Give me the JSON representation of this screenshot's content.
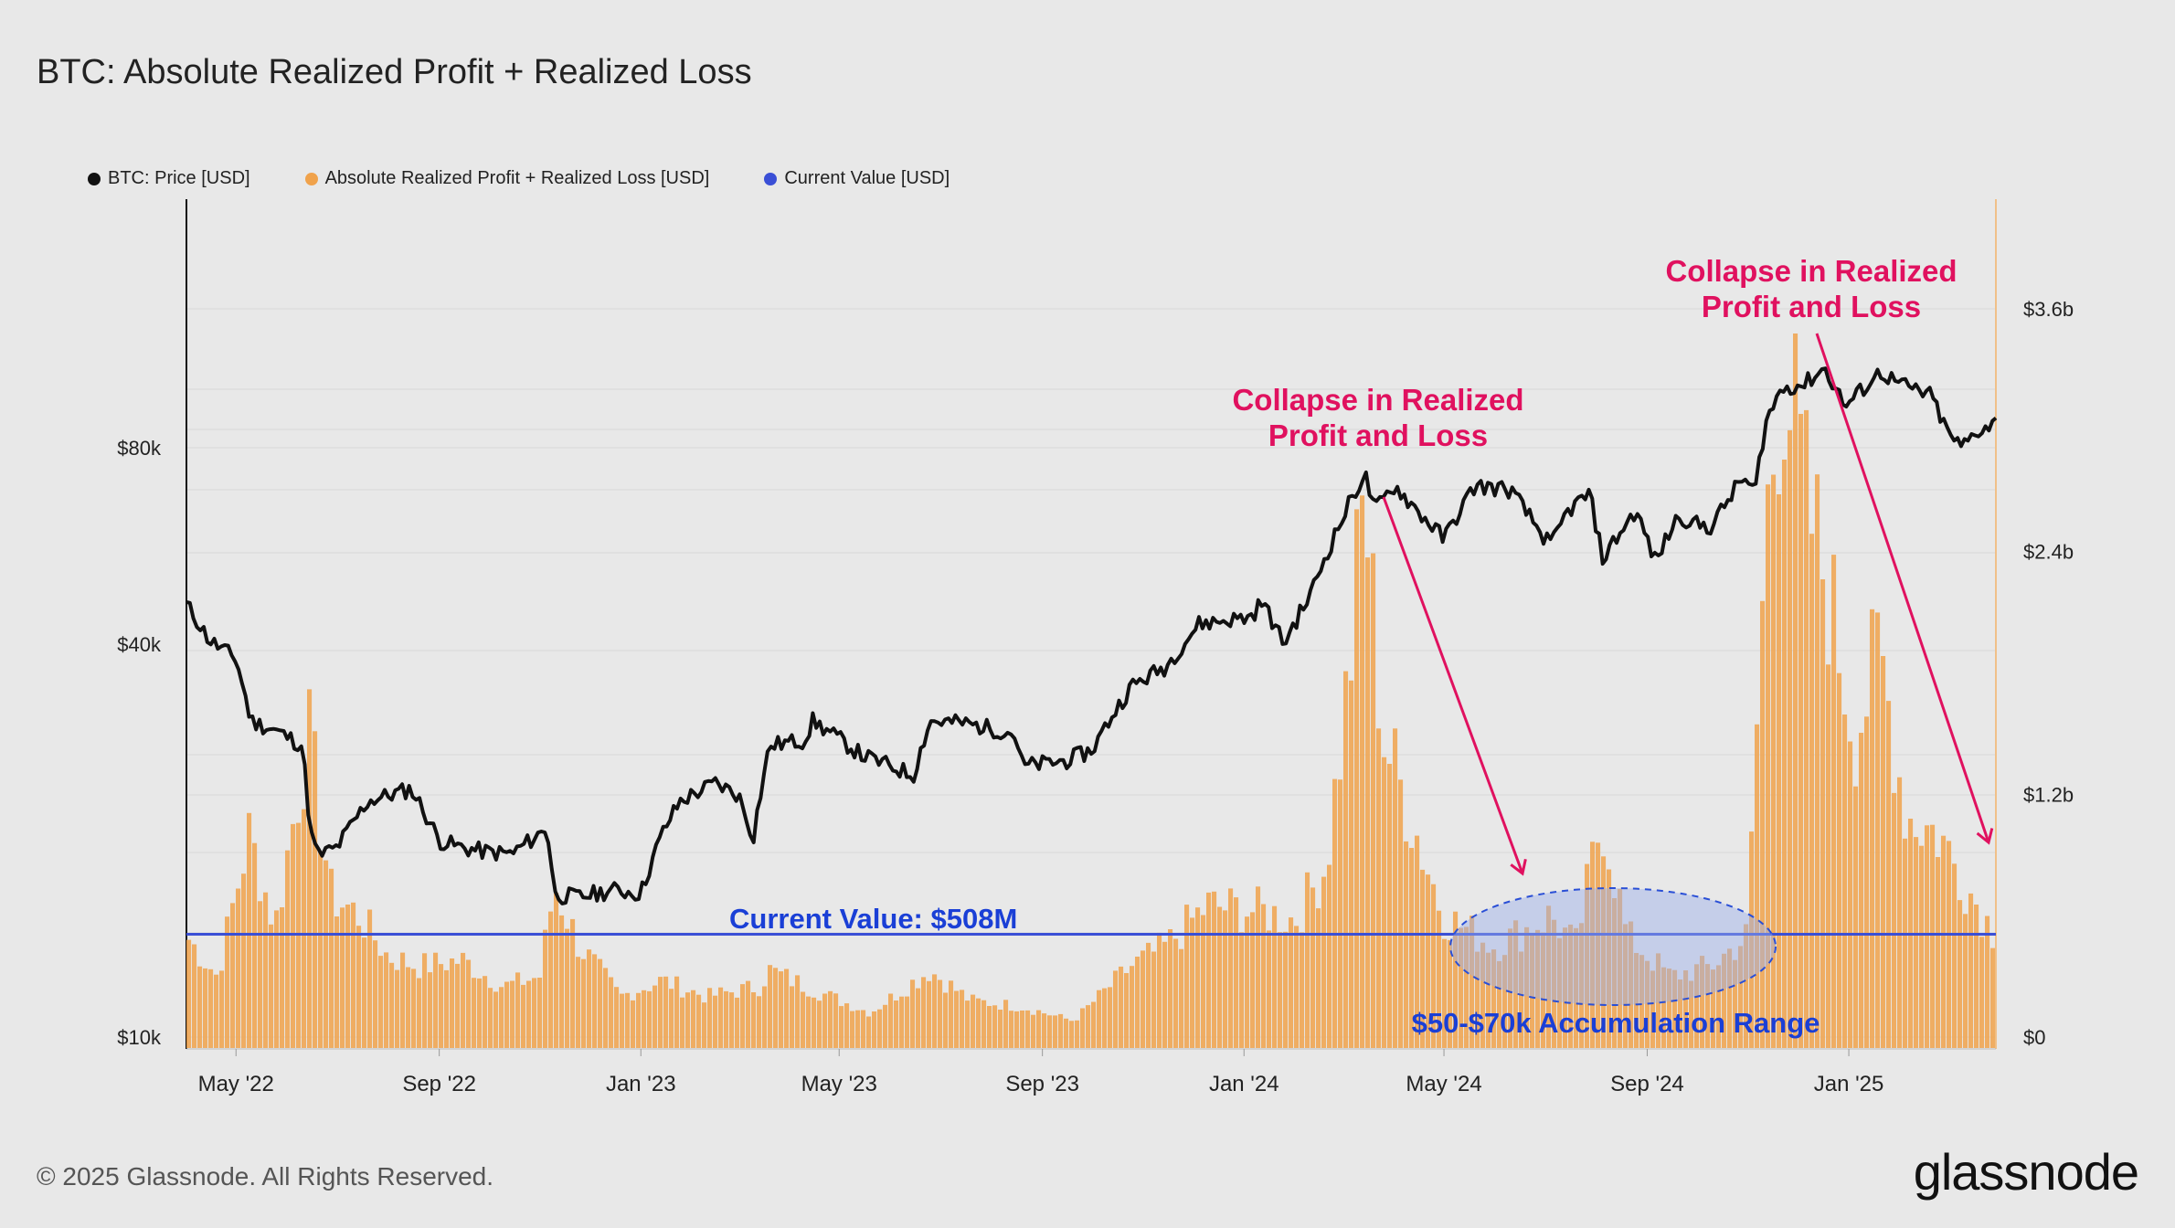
{
  "title": "BTC: Absolute Realized Profit + Realized Loss",
  "legend": [
    {
      "label": "BTC: Price [USD]",
      "color": "#111111"
    },
    {
      "label": "Absolute Realized Profit + Realized Loss [USD]",
      "color": "#f0a24b"
    },
    {
      "label": "Current Value [USD]",
      "color": "#3a4fd6"
    }
  ],
  "footer": {
    "copyright": "© 2025 Glassnode. All Rights Reserved.",
    "logo": "glassnode"
  },
  "chart_data": {
    "type": "line",
    "x_ticks": [
      "May '22",
      "Sep '22",
      "Jan '23",
      "May '23",
      "Sep '23",
      "Jan '24",
      "May '24",
      "Sep '24",
      "Jan '25"
    ],
    "x_range": [
      "2022-04-01",
      "2025-03-31"
    ],
    "left_axis": {
      "scale": "log",
      "ticks": [
        "$10k",
        "$40k",
        "$80k"
      ],
      "tick_values": [
        10000,
        40000,
        80000
      ]
    },
    "right_axis": {
      "scale": "linear",
      "ticks": [
        "$0",
        "$1.2b",
        "$2.4b",
        "$3.6b"
      ],
      "tick_values": [
        0,
        1.2,
        2.4,
        3.6
      ],
      "unit": "billion USD"
    },
    "grid": "horizontal",
    "legend_position": "top-left",
    "series": [
      {
        "name": "BTC: Price [USD]",
        "color": "#111111",
        "axis": "left",
        "points": [
          [
            "2022-04-01",
            46000
          ],
          [
            "2022-04-15",
            40500
          ],
          [
            "2022-05-01",
            38000
          ],
          [
            "2022-05-10",
            30500
          ],
          [
            "2022-05-25",
            29500
          ],
          [
            "2022-06-10",
            28000
          ],
          [
            "2022-06-15",
            20500
          ],
          [
            "2022-06-20",
            19000
          ],
          [
            "2022-07-01",
            19500
          ],
          [
            "2022-07-20",
            23000
          ],
          [
            "2022-08-15",
            24000
          ],
          [
            "2022-09-01",
            20000
          ],
          [
            "2022-09-15",
            19500
          ],
          [
            "2022-10-01",
            19200
          ],
          [
            "2022-10-15",
            19100
          ],
          [
            "2022-11-01",
            20500
          ],
          [
            "2022-11-05",
            21000
          ],
          [
            "2022-11-10",
            16500
          ],
          [
            "2022-11-25",
            16400
          ],
          [
            "2022-12-15",
            16800
          ],
          [
            "2023-01-01",
            16600
          ],
          [
            "2023-01-15",
            20800
          ],
          [
            "2023-01-25",
            23000
          ],
          [
            "2023-02-15",
            24500
          ],
          [
            "2023-03-01",
            23500
          ],
          [
            "2023-03-10",
            20200
          ],
          [
            "2023-03-20",
            28000
          ],
          [
            "2023-04-10",
            28500
          ],
          [
            "2023-04-15",
            30500
          ],
          [
            "2023-05-15",
            27000
          ],
          [
            "2023-06-15",
            25200
          ],
          [
            "2023-06-25",
            30500
          ],
          [
            "2023-07-15",
            30300
          ],
          [
            "2023-08-15",
            29200
          ],
          [
            "2023-08-20",
            26000
          ],
          [
            "2023-09-15",
            26500
          ],
          [
            "2023-10-01",
            27500
          ],
          [
            "2023-10-25",
            34500
          ],
          [
            "2023-11-15",
            37000
          ],
          [
            "2023-12-05",
            43000
          ],
          [
            "2023-12-20",
            43500
          ],
          [
            "2024-01-05",
            44000
          ],
          [
            "2024-01-12",
            46500
          ],
          [
            "2024-01-25",
            40000
          ],
          [
            "2024-02-10",
            47500
          ],
          [
            "2024-02-28",
            61000
          ],
          [
            "2024-03-05",
            66000
          ],
          [
            "2024-03-14",
            73000
          ],
          [
            "2024-03-20",
            64000
          ],
          [
            "2024-04-01",
            70000
          ],
          [
            "2024-04-15",
            64000
          ],
          [
            "2024-05-01",
            58000
          ],
          [
            "2024-05-20",
            70000
          ],
          [
            "2024-06-10",
            69000
          ],
          [
            "2024-06-25",
            61000
          ],
          [
            "2024-07-05",
            56500
          ],
          [
            "2024-07-15",
            64000
          ],
          [
            "2024-07-28",
            68000
          ],
          [
            "2024-08-05",
            54000
          ],
          [
            "2024-08-25",
            64000
          ],
          [
            "2024-09-06",
            53500
          ],
          [
            "2024-09-20",
            63000
          ],
          [
            "2024-10-01",
            61000
          ],
          [
            "2024-10-10",
            60500
          ],
          [
            "2024-10-29",
            72000
          ],
          [
            "2024-11-05",
            68000
          ],
          [
            "2024-11-12",
            88000
          ],
          [
            "2024-11-22",
            99000
          ],
          [
            "2024-12-05",
            100000
          ],
          [
            "2024-12-17",
            106000
          ],
          [
            "2024-12-30",
            92500
          ],
          [
            "2025-01-07",
            97000
          ],
          [
            "2025-01-20",
            104500
          ],
          [
            "2025-02-01",
            100000
          ],
          [
            "2025-02-20",
            96000
          ],
          [
            "2025-03-01",
            85000
          ],
          [
            "2025-03-10",
            80000
          ],
          [
            "2025-03-20",
            85000
          ],
          [
            "2025-03-31",
            87500
          ]
        ]
      },
      {
        "name": "Absolute Realized Profit + Realized Loss [USD]",
        "color": "#f0a24b",
        "axis": "right",
        "type": "bar",
        "points": [
          [
            "2022-04-01",
            0.5
          ],
          [
            "2022-04-20",
            0.3
          ],
          [
            "2022-05-09",
            1.0
          ],
          [
            "2022-05-25",
            0.55
          ],
          [
            "2022-06-14",
            1.5
          ],
          [
            "2022-06-28",
            0.7
          ],
          [
            "2022-07-15",
            0.6
          ],
          [
            "2022-08-01",
            0.4
          ],
          [
            "2022-08-20",
            0.35
          ],
          [
            "2022-09-15",
            0.38
          ],
          [
            "2022-10-10",
            0.25
          ],
          [
            "2022-11-01",
            0.3
          ],
          [
            "2022-11-10",
            0.75
          ],
          [
            "2022-11-25",
            0.45
          ],
          [
            "2022-12-20",
            0.2
          ],
          [
            "2023-01-14",
            0.28
          ],
          [
            "2023-02-10",
            0.2
          ],
          [
            "2023-03-14",
            0.25
          ],
          [
            "2023-03-20",
            0.33
          ],
          [
            "2023-04-20",
            0.22
          ],
          [
            "2023-05-20",
            0.12
          ],
          [
            "2023-06-25",
            0.33
          ],
          [
            "2023-07-20",
            0.18
          ],
          [
            "2023-08-20",
            0.15
          ],
          [
            "2023-09-20",
            0.08
          ],
          [
            "2023-10-25",
            0.35
          ],
          [
            "2023-11-15",
            0.45
          ],
          [
            "2023-12-10",
            0.65
          ],
          [
            "2024-01-12",
            0.62
          ],
          [
            "2024-02-01",
            0.58
          ],
          [
            "2024-02-20",
            0.85
          ],
          [
            "2024-03-05",
            1.8
          ],
          [
            "2024-03-14",
            2.7
          ],
          [
            "2024-03-25",
            1.5
          ],
          [
            "2024-04-15",
            1.0
          ],
          [
            "2024-05-01",
            0.6
          ],
          [
            "2024-06-01",
            0.45
          ],
          [
            "2024-07-05",
            0.6
          ],
          [
            "2024-07-20",
            0.45
          ],
          [
            "2024-08-05",
            1.1
          ],
          [
            "2024-08-20",
            0.5
          ],
          [
            "2024-09-15",
            0.3
          ],
          [
            "2024-10-10",
            0.35
          ],
          [
            "2024-11-01",
            0.5
          ],
          [
            "2024-11-12",
            2.5
          ],
          [
            "2024-11-22",
            3.4
          ],
          [
            "2024-12-05",
            2.7
          ],
          [
            "2024-12-20",
            2.2
          ],
          [
            "2025-01-05",
            1.5
          ],
          [
            "2025-01-20",
            1.9
          ],
          [
            "2025-02-05",
            1.1
          ],
          [
            "2025-02-25",
            1.0
          ],
          [
            "2025-03-10",
            0.8
          ],
          [
            "2025-03-31",
            0.5
          ]
        ]
      },
      {
        "name": "Current Value [USD]",
        "color": "#3a4fd6",
        "axis": "right",
        "value": 0.508
      }
    ],
    "annotations": [
      {
        "text_lines": [
          "Collapse in Realized",
          "Profit and Loss"
        ],
        "color": "#e0115f"
      },
      {
        "text_lines": [
          "Collapse in Realized",
          "Profit and Loss"
        ],
        "color": "#e0115f"
      },
      {
        "text": "Current Value: $508M",
        "color": "#1a3fd6"
      },
      {
        "text": "$50-$70k Accumulation Range",
        "color": "#1a3fd6"
      }
    ]
  }
}
